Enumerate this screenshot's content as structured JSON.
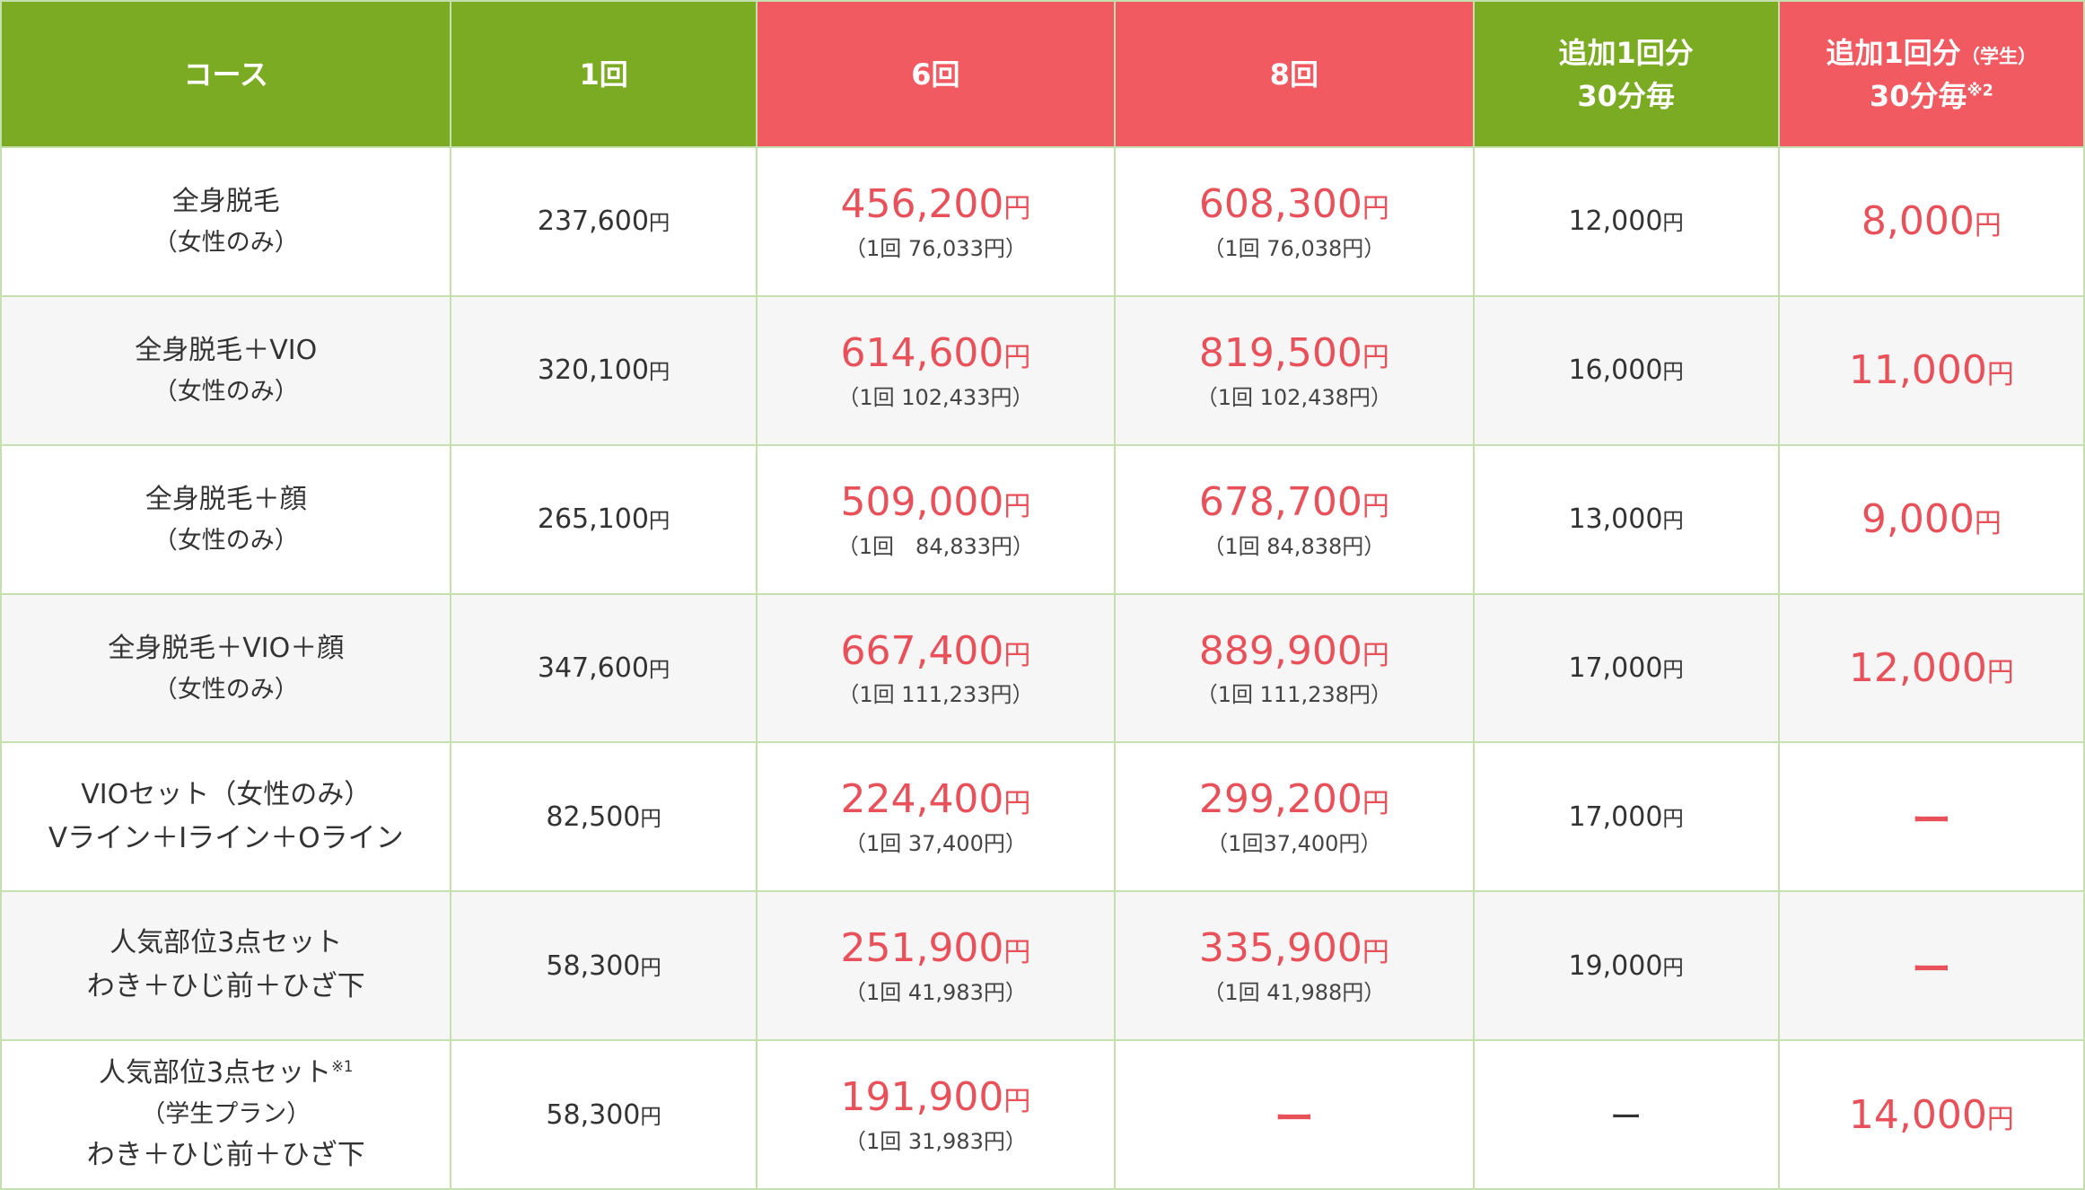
{
  "header": {
    "course": "コース",
    "once": "1回",
    "six": "6回",
    "eight": "8回",
    "add_line1": "追加1回分",
    "add_line2": "30分毎",
    "student_line1": "追加1回分",
    "student_tag": "（学生）",
    "student_line2": "30分毎",
    "student_note": "※2"
  },
  "yen": "円",
  "rows": [
    {
      "name": "全身脱毛",
      "sub": "（女性のみ）",
      "once": "237,600",
      "six": "456,200",
      "six_per": "（1回 76,033円）",
      "eight": "608,300",
      "eight_per": "（1回 76,038円）",
      "add": "12,000",
      "student": "8,000"
    },
    {
      "name": "全身脱毛＋VIO",
      "sub": "（女性のみ）",
      "once": "320,100",
      "six": "614,600",
      "six_per": "（1回 102,433円）",
      "eight": "819,500",
      "eight_per": "（1回 102,438円）",
      "add": "16,000",
      "student": "11,000"
    },
    {
      "name": "全身脱毛＋顔",
      "sub": "（女性のみ）",
      "once": "265,100",
      "six": "509,000",
      "six_per": "（1回　84,833円）",
      "eight": "678,700",
      "eight_per": "（1回 84,838円）",
      "add": "13,000",
      "student": "9,000"
    },
    {
      "name": "全身脱毛＋VIO＋顔",
      "sub": "（女性のみ）",
      "once": "347,600",
      "six": "667,400",
      "six_per": "（1回 111,233円）",
      "eight": "889,900",
      "eight_per": "（1回 111,238円）",
      "add": "17,000",
      "student": "12,000"
    },
    {
      "name": "VIOセット（女性のみ）",
      "sub": "Vライン＋Iライン＋Oライン",
      "once": "82,500",
      "six": "224,400",
      "six_per": "（1回 37,400円）",
      "eight": "299,200",
      "eight_per": "（1回37,400円）",
      "add": "17,000",
      "student": "ー"
    },
    {
      "name": "人気部位3点セット",
      "sub": "わき＋ひじ前＋ひざ下",
      "once": "58,300",
      "six": "251,900",
      "six_per": "（1回 41,983円）",
      "eight": "335,900",
      "eight_per": "（1回 41,988円）",
      "add": "19,000",
      "student": "ー"
    },
    {
      "name": "人気部位3点セット",
      "note": "※1",
      "sub": "（学生プラン）",
      "sub2": "わき＋ひじ前＋ひざ下",
      "once": "58,300",
      "six": "191,900",
      "six_per": "（1回 31,983円）",
      "eight": "ー",
      "add": "ー",
      "student": "14,000"
    }
  ]
}
